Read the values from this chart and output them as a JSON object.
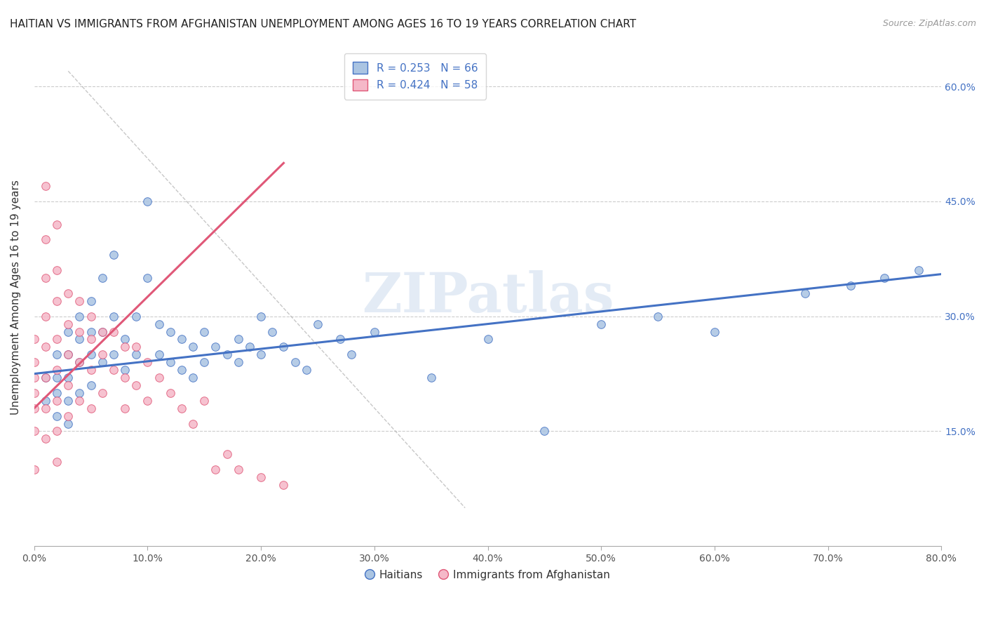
{
  "title": "HAITIAN VS IMMIGRANTS FROM AFGHANISTAN UNEMPLOYMENT AMONG AGES 16 TO 19 YEARS CORRELATION CHART",
  "source": "Source: ZipAtlas.com",
  "ylabel": "Unemployment Among Ages 16 to 19 years",
  "xlabel": "",
  "watermark": "ZIPatlas",
  "blue_R": 0.253,
  "blue_N": 66,
  "pink_R": 0.424,
  "pink_N": 58,
  "blue_color": "#aac4e2",
  "pink_color": "#f5b8c8",
  "blue_line_color": "#4472c4",
  "pink_line_color": "#e05878",
  "legend_blue_label": "Haitians",
  "legend_pink_label": "Immigrants from Afghanistan",
  "xlim": [
    0.0,
    0.8
  ],
  "ylim": [
    0.0,
    0.65
  ],
  "xticks": [
    0.0,
    0.1,
    0.2,
    0.3,
    0.4,
    0.5,
    0.6,
    0.7,
    0.8
  ],
  "yticks_right": [
    0.15,
    0.3,
    0.45,
    0.6
  ],
  "ytick_labels_right": [
    "15.0%",
    "30.0%",
    "45.0%",
    "60.0%"
  ],
  "xtick_labels": [
    "0.0%",
    "10.0%",
    "20.0%",
    "30.0%",
    "40.0%",
    "50.0%",
    "60.0%",
    "70.0%",
    "80.0%"
  ],
  "blue_x": [
    0.01,
    0.01,
    0.02,
    0.02,
    0.02,
    0.02,
    0.03,
    0.03,
    0.03,
    0.03,
    0.03,
    0.04,
    0.04,
    0.04,
    0.04,
    0.05,
    0.05,
    0.05,
    0.05,
    0.06,
    0.06,
    0.06,
    0.07,
    0.07,
    0.07,
    0.08,
    0.08,
    0.09,
    0.09,
    0.1,
    0.1,
    0.11,
    0.11,
    0.12,
    0.12,
    0.13,
    0.13,
    0.14,
    0.14,
    0.15,
    0.15,
    0.16,
    0.17,
    0.18,
    0.18,
    0.19,
    0.2,
    0.2,
    0.21,
    0.22,
    0.23,
    0.24,
    0.25,
    0.27,
    0.28,
    0.3,
    0.35,
    0.4,
    0.45,
    0.5,
    0.55,
    0.6,
    0.68,
    0.72,
    0.75,
    0.78
  ],
  "blue_y": [
    0.22,
    0.19,
    0.25,
    0.22,
    0.2,
    0.17,
    0.28,
    0.25,
    0.22,
    0.19,
    0.16,
    0.3,
    0.27,
    0.24,
    0.2,
    0.32,
    0.28,
    0.25,
    0.21,
    0.35,
    0.28,
    0.24,
    0.38,
    0.3,
    0.25,
    0.27,
    0.23,
    0.3,
    0.25,
    0.45,
    0.35,
    0.29,
    0.25,
    0.28,
    0.24,
    0.27,
    0.23,
    0.26,
    0.22,
    0.28,
    0.24,
    0.26,
    0.25,
    0.27,
    0.24,
    0.26,
    0.3,
    0.25,
    0.28,
    0.26,
    0.24,
    0.23,
    0.29,
    0.27,
    0.25,
    0.28,
    0.22,
    0.27,
    0.15,
    0.29,
    0.3,
    0.28,
    0.33,
    0.34,
    0.35,
    0.36
  ],
  "pink_x": [
    0.0,
    0.0,
    0.0,
    0.0,
    0.0,
    0.0,
    0.0,
    0.01,
    0.01,
    0.01,
    0.01,
    0.01,
    0.01,
    0.01,
    0.01,
    0.02,
    0.02,
    0.02,
    0.02,
    0.02,
    0.02,
    0.02,
    0.02,
    0.03,
    0.03,
    0.03,
    0.03,
    0.03,
    0.04,
    0.04,
    0.04,
    0.04,
    0.05,
    0.05,
    0.05,
    0.05,
    0.06,
    0.06,
    0.06,
    0.07,
    0.07,
    0.08,
    0.08,
    0.08,
    0.09,
    0.09,
    0.1,
    0.1,
    0.11,
    0.12,
    0.13,
    0.14,
    0.15,
    0.16,
    0.17,
    0.18,
    0.2,
    0.22
  ],
  "pink_y": [
    0.27,
    0.24,
    0.22,
    0.2,
    0.18,
    0.15,
    0.1,
    0.47,
    0.4,
    0.35,
    0.3,
    0.26,
    0.22,
    0.18,
    0.14,
    0.42,
    0.36,
    0.32,
    0.27,
    0.23,
    0.19,
    0.15,
    0.11,
    0.33,
    0.29,
    0.25,
    0.21,
    0.17,
    0.32,
    0.28,
    0.24,
    0.19,
    0.3,
    0.27,
    0.23,
    0.18,
    0.28,
    0.25,
    0.2,
    0.28,
    0.23,
    0.26,
    0.22,
    0.18,
    0.26,
    0.21,
    0.24,
    0.19,
    0.22,
    0.2,
    0.18,
    0.16,
    0.19,
    0.1,
    0.12,
    0.1,
    0.09,
    0.08
  ],
  "title_fontsize": 11,
  "axis_label_fontsize": 11,
  "tick_fontsize": 10,
  "legend_fontsize": 11,
  "dot_size": 70
}
